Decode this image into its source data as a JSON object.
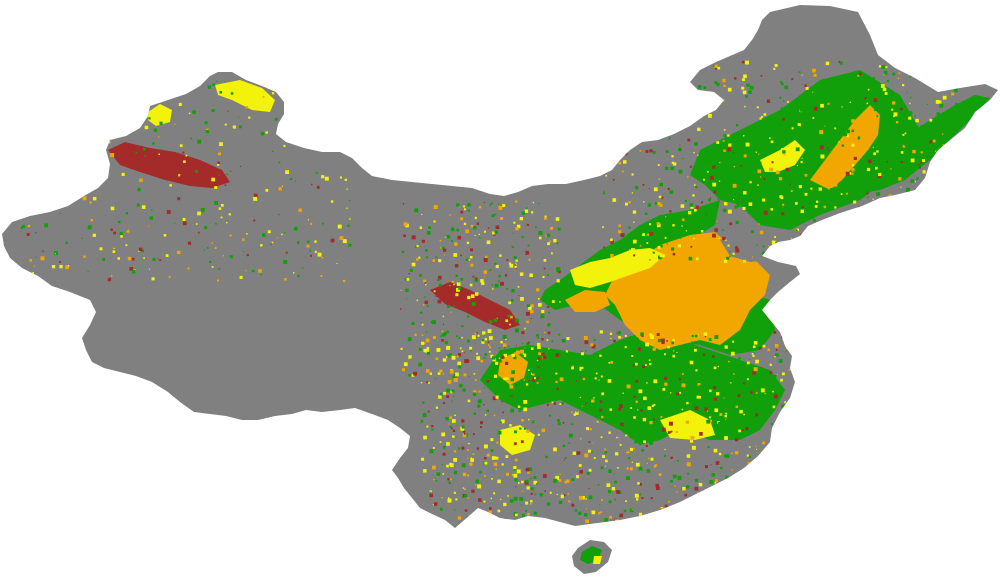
{
  "map": {
    "region": "China",
    "background_color": "#ffffff",
    "categories": [
      {
        "name": "grey",
        "color": "#808080"
      },
      {
        "name": "green",
        "color": "#119f0a"
      },
      {
        "name": "yellow",
        "color": "#f2f20a"
      },
      {
        "name": "orange",
        "color": "#f2a600"
      },
      {
        "name": "red",
        "color": "#a52a2a"
      }
    ]
  }
}
